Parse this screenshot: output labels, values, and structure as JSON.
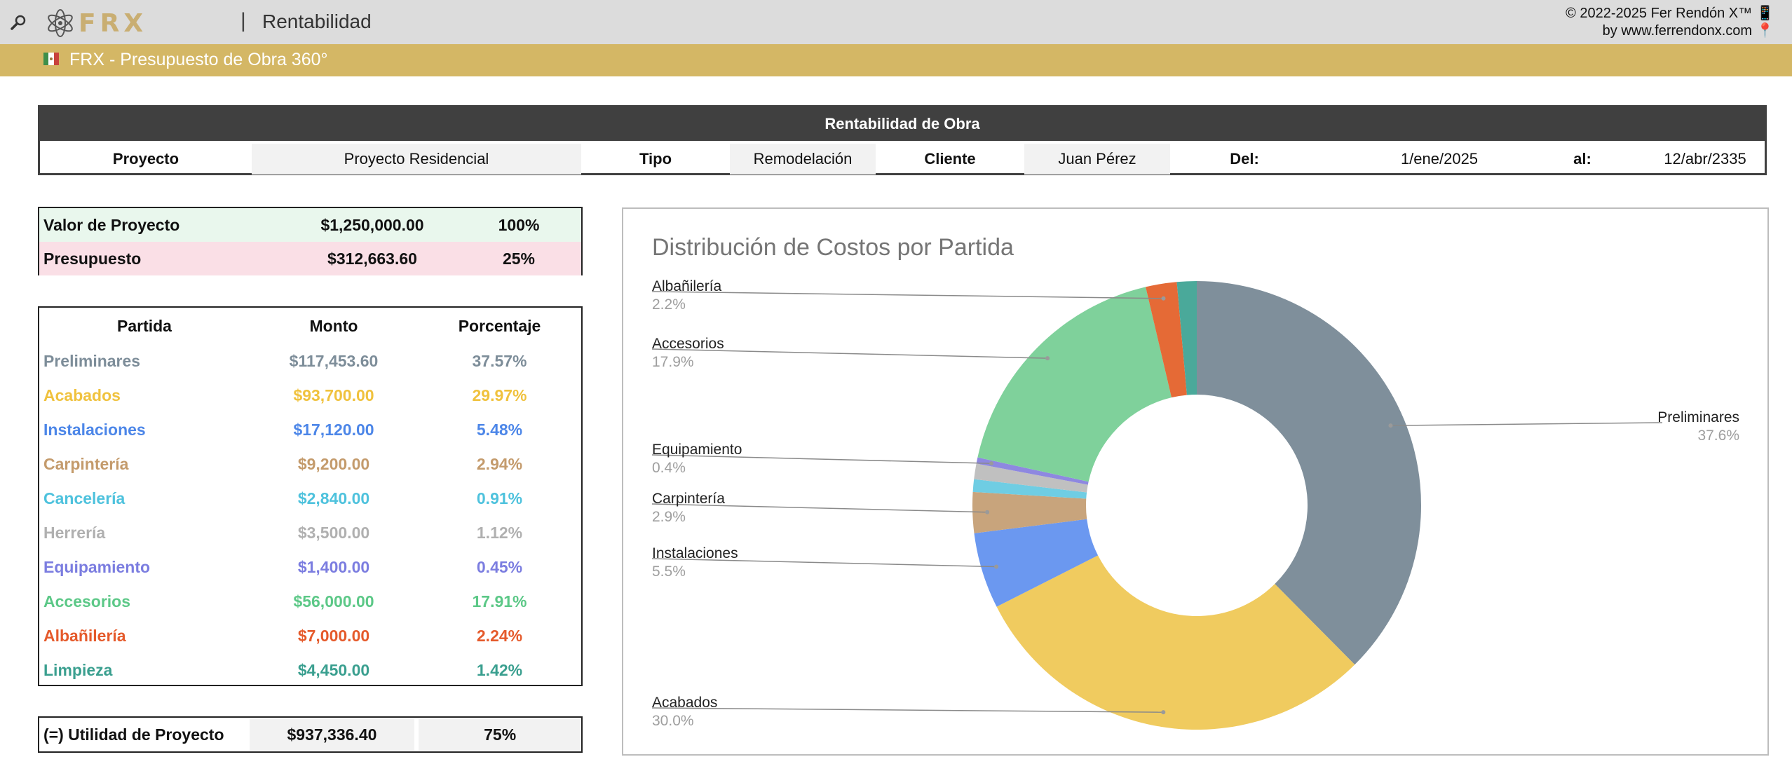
{
  "app": {
    "title": "Rentabilidad",
    "logo_text": "FRX",
    "copyright": "© 2022-2025 Fer Rendón X™",
    "website": "by www.ferrendonx.com"
  },
  "sheet_tab": {
    "label": "FRX - Presupuesto de Obra 360°"
  },
  "project": {
    "header": "Rentabilidad de Obra",
    "proyecto_label": "Proyecto",
    "proyecto_value": "Proyecto Residencial",
    "tipo_label": "Tipo",
    "tipo_value": "Remodelación",
    "cliente_label": "Cliente",
    "cliente_value": "Juan Pérez",
    "del_label": "Del:",
    "del_value": "1/ene/2025",
    "al_label": "al:",
    "al_value": "12/abr/2335"
  },
  "summary": {
    "valor_label": "Valor de Proyecto",
    "valor_amount": "$1,250,000.00",
    "valor_pct": "100%",
    "presupuesto_label": "Presupuesto",
    "presupuesto_amount": "$312,663.60",
    "presupuesto_pct": "25%"
  },
  "partidas": {
    "headers": [
      "Partida",
      "Monto",
      "Porcentaje"
    ],
    "rows": [
      {
        "name": "Preliminares",
        "amount": "$117,453.60",
        "pct": "37.57%",
        "color": "#7d8d99"
      },
      {
        "name": "Acabados",
        "amount": "$93,700.00",
        "pct": "29.97%",
        "color": "#f0c23e"
      },
      {
        "name": "Instalaciones",
        "amount": "$17,120.00",
        "pct": "5.48%",
        "color": "#4c86e8"
      },
      {
        "name": "Carpintería",
        "amount": "$9,200.00",
        "pct": "2.94%",
        "color": "#c49b6c"
      },
      {
        "name": "Cancelería",
        "amount": "$2,840.00",
        "pct": "0.91%",
        "color": "#4ec2dd"
      },
      {
        "name": "Herrería",
        "amount": "$3,500.00",
        "pct": "1.12%",
        "color": "#b0b0b0"
      },
      {
        "name": "Equipamiento",
        "amount": "$1,400.00",
        "pct": "0.45%",
        "color": "#7b7de0"
      },
      {
        "name": "Accesorios",
        "amount": "$56,000.00",
        "pct": "17.91%",
        "color": "#5cc887"
      },
      {
        "name": "Albañilería",
        "amount": "$7,000.00",
        "pct": "2.24%",
        "color": "#e55a2b"
      },
      {
        "name": "Limpieza",
        "amount": "$4,450.00",
        "pct": "1.42%",
        "color": "#3a9f8f"
      }
    ]
  },
  "utilidad": {
    "label": "(=) Utilidad de Proyecto",
    "amount": "$937,336.40",
    "pct": "75%"
  },
  "chart_data": {
    "type": "pie",
    "title": "Distribución de Costos por Partida",
    "donut": true,
    "slices": [
      {
        "name": "Preliminares",
        "value": 37.57,
        "label": "37.6%",
        "color": "#7f8f9b"
      },
      {
        "name": "Acabados",
        "value": 29.97,
        "label": "30.0%",
        "color": "#f0cb5f"
      },
      {
        "name": "Instalaciones",
        "value": 5.48,
        "label": "5.5%",
        "color": "#6b98f0"
      },
      {
        "name": "Carpintería",
        "value": 2.94,
        "label": "2.9%",
        "color": "#c8a47c"
      },
      {
        "name": "Cancelería",
        "value": 0.91,
        "label": "",
        "color": "#6fcde3"
      },
      {
        "name": "Herrería",
        "value": 1.12,
        "label": "",
        "color": "#c0c0c0"
      },
      {
        "name": "Equipamiento",
        "value": 0.45,
        "label": "0.4%",
        "color": "#8e88e0"
      },
      {
        "name": "Accesorios",
        "value": 17.91,
        "label": "17.9%",
        "color": "#7fd19b"
      },
      {
        "name": "Albañilería",
        "value": 2.24,
        "label": "2.2%",
        "color": "#e56a36"
      },
      {
        "name": "Limpieza",
        "value": 1.42,
        "label": "",
        "color": "#4aa99a"
      }
    ]
  },
  "colors": {
    "topbar": "#dcdcdc",
    "goldbar": "#d4b765",
    "header_dark": "#404040",
    "valor_bg": "#e9f7ed",
    "presupuesto_bg": "#fadfe6"
  }
}
